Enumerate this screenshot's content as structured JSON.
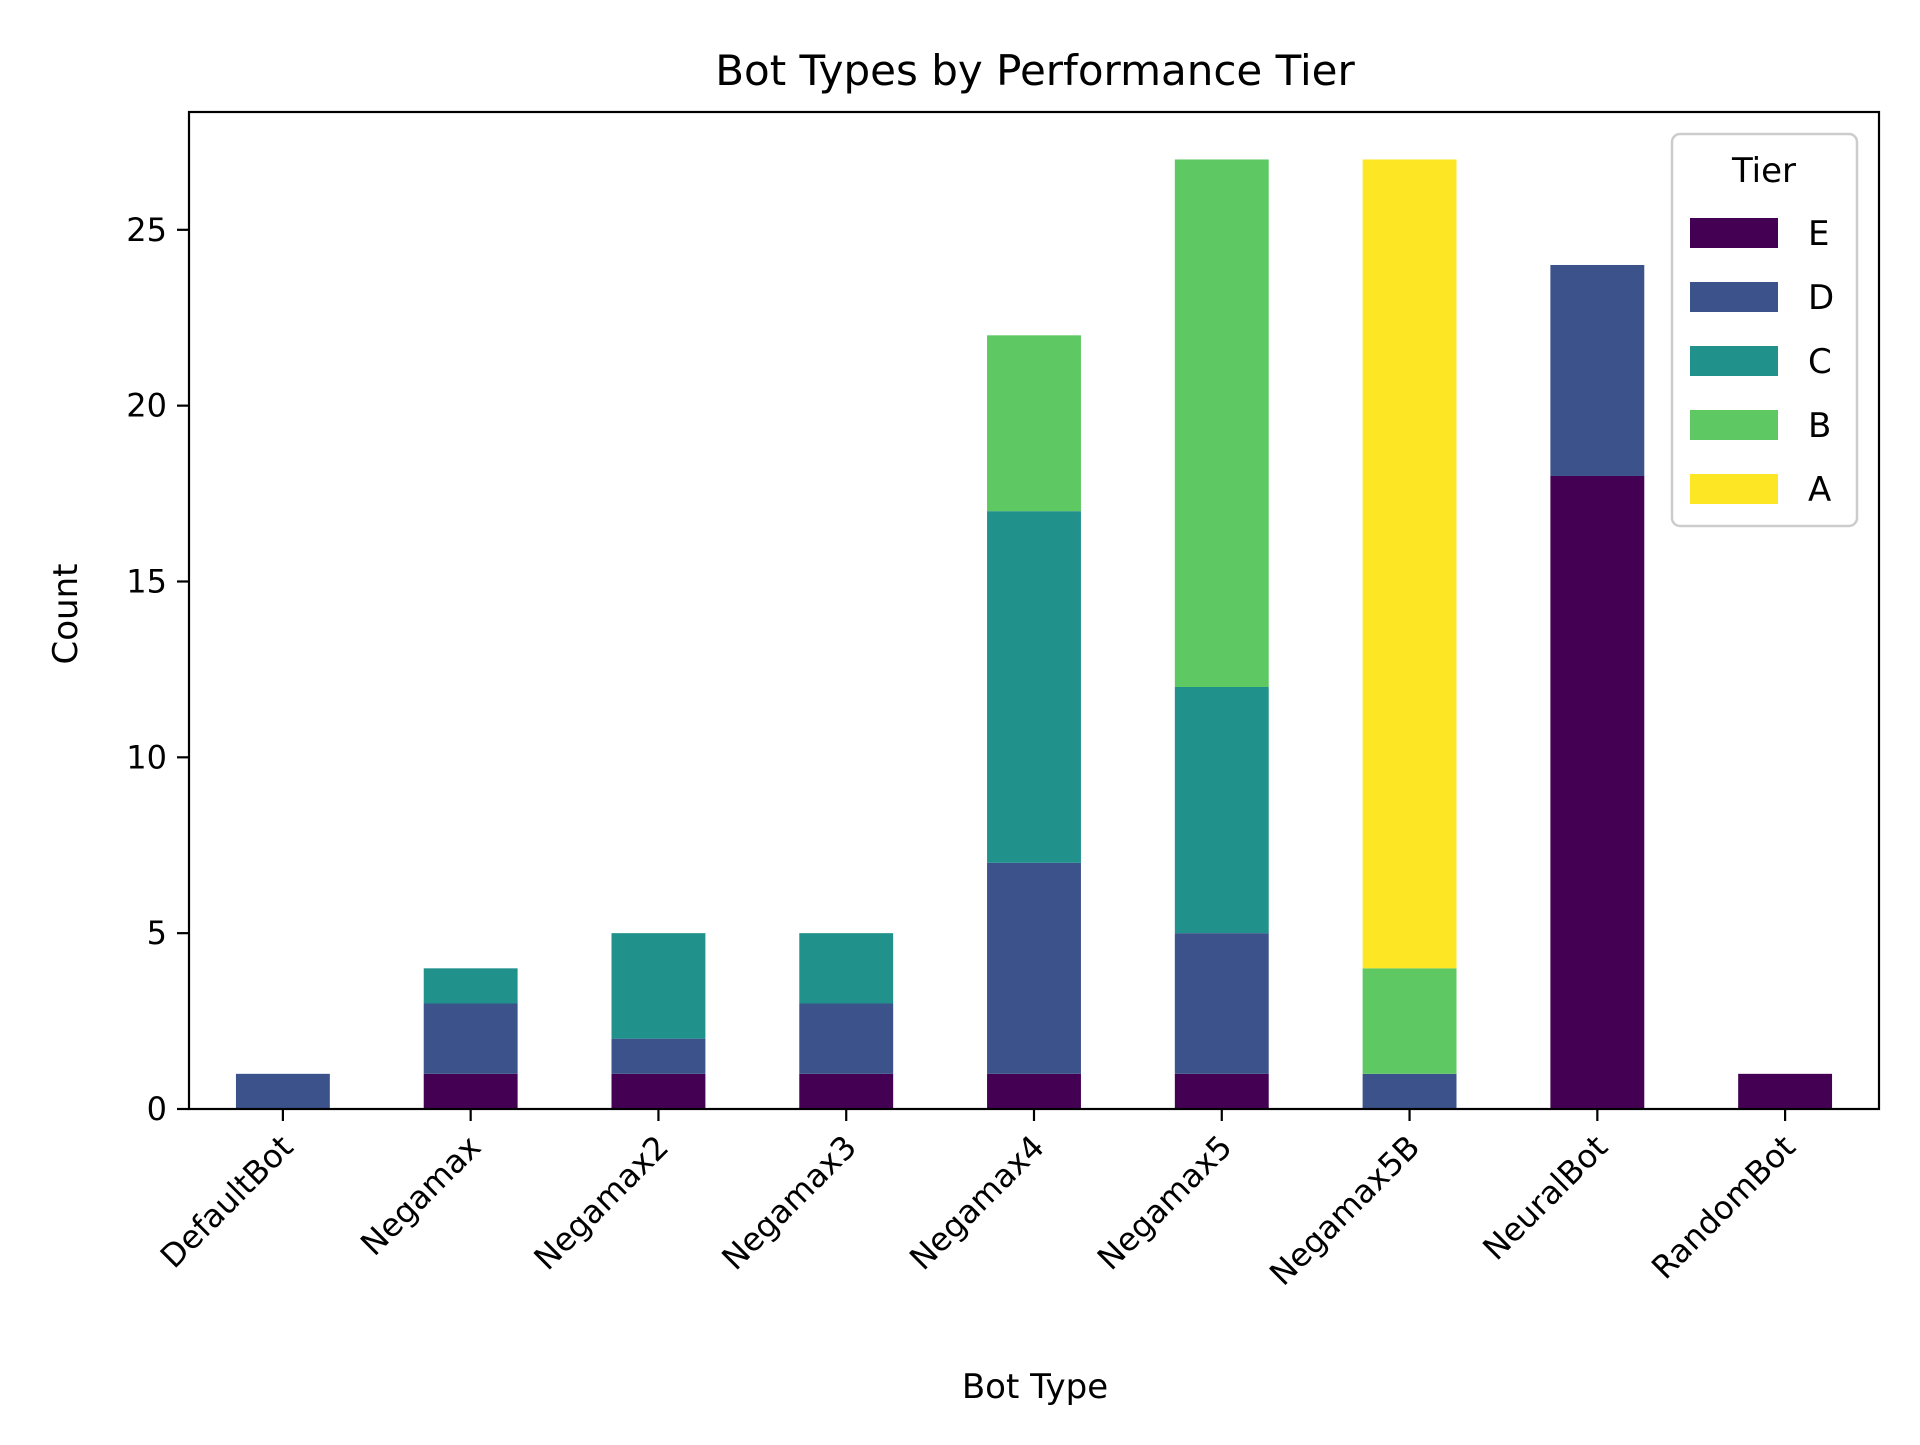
{
  "chart_data": {
    "type": "bar",
    "stacked": true,
    "title": "Bot Types by Performance Tier",
    "xlabel": "Bot Type",
    "ylabel": "Count",
    "ylim": [
      0,
      28.35
    ],
    "yticks": [
      0,
      5,
      10,
      15,
      20,
      25
    ],
    "grid": false,
    "categories": [
      "DefaultBot",
      "Negamax",
      "Negamax2",
      "Negamax3",
      "Negamax4",
      "Negamax5",
      "Negamax5B",
      "NeuralBot",
      "RandomBot"
    ],
    "series": [
      {
        "name": "E",
        "color": "#440154",
        "values": [
          0,
          1,
          1,
          1,
          1,
          1,
          0,
          18,
          1
        ]
      },
      {
        "name": "D",
        "color": "#3b528b",
        "values": [
          1,
          2,
          1,
          2,
          6,
          4,
          1,
          6,
          0
        ]
      },
      {
        "name": "C",
        "color": "#21918c",
        "values": [
          0,
          1,
          3,
          2,
          10,
          7,
          0,
          0,
          0
        ]
      },
      {
        "name": "B",
        "color": "#5ec962",
        "values": [
          0,
          0,
          0,
          0,
          5,
          15,
          3,
          0,
          0
        ]
      },
      {
        "name": "A",
        "color": "#fde725",
        "values": [
          0,
          0,
          0,
          0,
          0,
          0,
          23,
          0,
          0
        ]
      }
    ],
    "legend": {
      "title": "Tier",
      "placement": "top-right"
    }
  }
}
